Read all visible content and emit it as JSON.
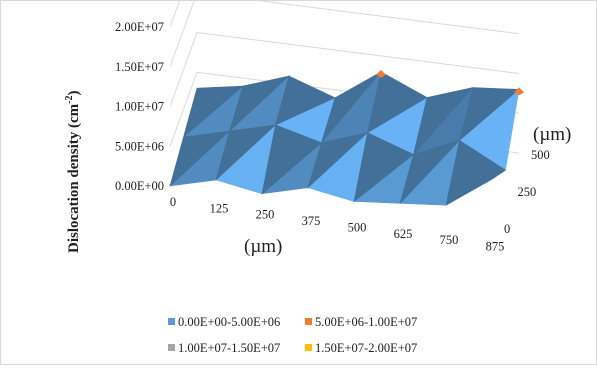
{
  "chart_data": {
    "type": "surface",
    "title": "",
    "ylabel": "Dislocation density (cm",
    "ylabel_superscript": "-2",
    "ylabel_close": ")",
    "xlabel": "(µm)",
    "depth_label": "(µm)",
    "x_ticks": [
      "0",
      "125",
      "250",
      "375",
      "500",
      "625",
      "750",
      "875"
    ],
    "depth_ticks": [
      "0",
      "250",
      "500"
    ],
    "z_ticks": [
      "0.00E+00",
      "5.00E+06",
      "1.00E+07",
      "1.50E+07",
      "2.00E+07"
    ],
    "x_values": [
      0,
      125,
      250,
      375,
      500,
      625,
      750,
      875
    ],
    "depth_values": [
      0,
      250,
      500
    ],
    "zlim": [
      0,
      20000000
    ],
    "z_grid": [
      [
        0,
        1500000,
        500000,
        2000000,
        1000000,
        1500000,
        2000000,
        6000000
      ],
      [
        1500000,
        3000000,
        4500000,
        3000000,
        5000000,
        3000000,
        5500000,
        2500000
      ],
      [
        3000000,
        4000000,
        6000000,
        4000000,
        8000000,
        5500000,
        7500000,
        8000000
      ]
    ],
    "legend": [
      {
        "label": "0.00E+00-5.00E+06",
        "color": "#5b9bd5"
      },
      {
        "label": "5.00E+06-1.00E+07",
        "color": "#ed7d31"
      },
      {
        "label": "1.00E+07-1.50E+07",
        "color": "#a5a5a5"
      },
      {
        "label": "1.50E+07-2.00E+07",
        "color": "#ffc000"
      }
    ],
    "grid": true,
    "legend_position": "bottom"
  }
}
